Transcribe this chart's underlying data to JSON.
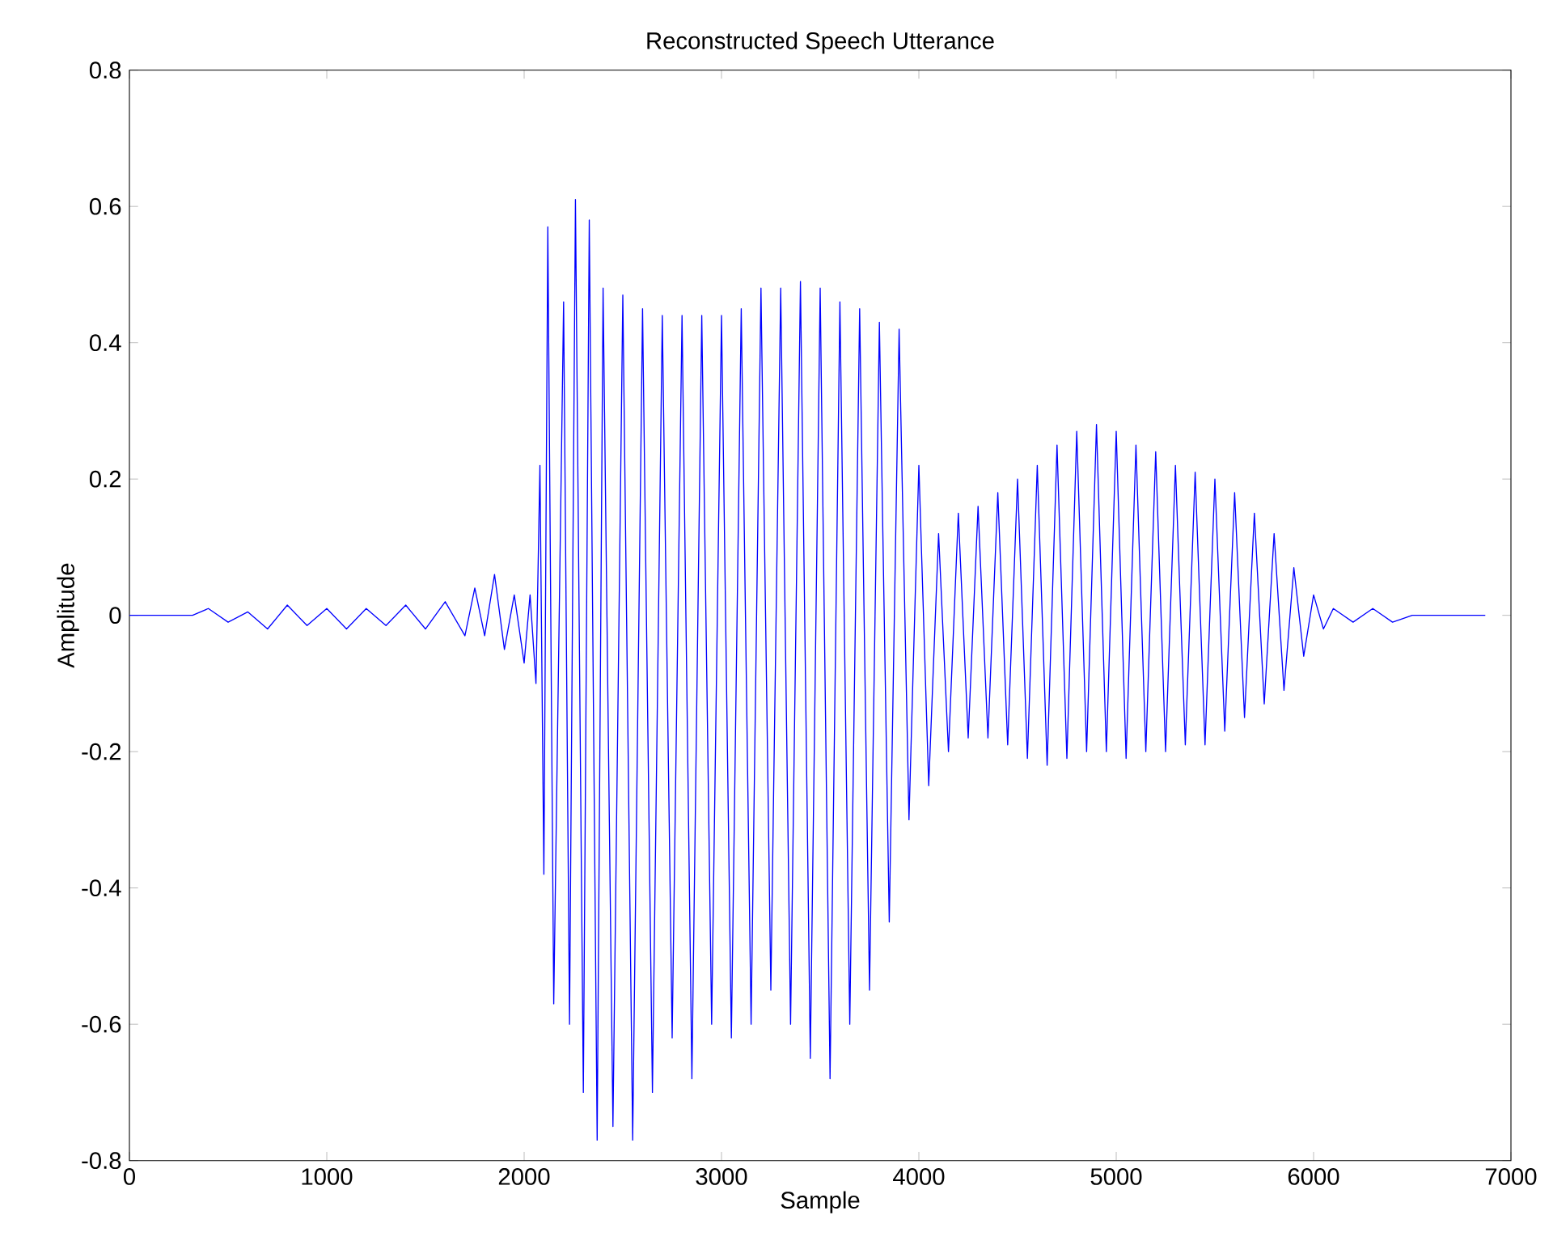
{
  "chart_data": {
    "type": "line",
    "title": "Reconstructed Speech Utterance",
    "xlabel": "Sample",
    "ylabel": "Amplitude",
    "x": [
      0,
      320,
      400,
      500,
      600,
      700,
      800,
      900,
      1000,
      1100,
      1200,
      1300,
      1400,
      1500,
      1600,
      1700,
      1750,
      1800,
      1850,
      1900,
      1950,
      2000,
      2030,
      2060,
      2080,
      2100,
      2120,
      2150,
      2200,
      2230,
      2260,
      2300,
      2330,
      2370,
      2400,
      2450,
      2500,
      2550,
      2600,
      2650,
      2700,
      2750,
      2800,
      2850,
      2900,
      2950,
      3000,
      3050,
      3100,
      3150,
      3200,
      3250,
      3300,
      3350,
      3400,
      3450,
      3500,
      3550,
      3600,
      3650,
      3700,
      3750,
      3800,
      3850,
      3900,
      3950,
      4000,
      4050,
      4100,
      4150,
      4200,
      4250,
      4300,
      4350,
      4400,
      4450,
      4500,
      4550,
      4600,
      4650,
      4700,
      4750,
      4800,
      4850,
      4900,
      4950,
      5000,
      5050,
      5100,
      5150,
      5200,
      5250,
      5300,
      5350,
      5400,
      5450,
      5500,
      5550,
      5600,
      5650,
      5700,
      5750,
      5800,
      5850,
      5900,
      5950,
      6000,
      6050,
      6100,
      6200,
      6300,
      6400,
      6500,
      6870
    ],
    "values": [
      0,
      0,
      0.01,
      -0.01,
      0.005,
      -0.02,
      0.015,
      -0.015,
      0.01,
      -0.02,
      0.01,
      -0.015,
      0.015,
      -0.02,
      0.02,
      -0.03,
      0.04,
      -0.03,
      0.06,
      -0.05,
      0.03,
      -0.07,
      0.03,
      -0.1,
      0.22,
      -0.38,
      0.57,
      -0.57,
      0.46,
      -0.6,
      0.61,
      -0.7,
      0.58,
      -0.77,
      0.48,
      -0.75,
      0.47,
      -0.77,
      0.45,
      -0.7,
      0.44,
      -0.62,
      0.44,
      -0.68,
      0.44,
      -0.6,
      0.44,
      -0.62,
      0.45,
      -0.6,
      0.48,
      -0.55,
      0.48,
      -0.6,
      0.49,
      -0.65,
      0.48,
      -0.68,
      0.46,
      -0.6,
      0.45,
      -0.55,
      0.43,
      -0.45,
      0.42,
      -0.3,
      0.22,
      -0.25,
      0.12,
      -0.2,
      0.15,
      -0.18,
      0.16,
      -0.18,
      0.18,
      -0.19,
      0.2,
      -0.21,
      0.22,
      -0.22,
      0.25,
      -0.21,
      0.27,
      -0.2,
      0.28,
      -0.2,
      0.27,
      -0.21,
      0.25,
      -0.2,
      0.24,
      -0.2,
      0.22,
      -0.19,
      0.21,
      -0.19,
      0.2,
      -0.17,
      0.18,
      -0.15,
      0.15,
      -0.13,
      0.12,
      -0.11,
      0.07,
      -0.06,
      0.03,
      -0.02,
      0.01,
      -0.01,
      0.01,
      -0.01,
      0,
      0
    ],
    "color": "#0000ff",
    "xlim": [
      0,
      7000
    ],
    "ylim": [
      -0.8,
      0.8
    ],
    "xticks": [
      0,
      1000,
      2000,
      3000,
      4000,
      5000,
      6000,
      7000
    ],
    "yticks": [
      -0.8,
      -0.6,
      -0.4,
      -0.2,
      0,
      0.2,
      0.4,
      0.6,
      0.8
    ]
  }
}
